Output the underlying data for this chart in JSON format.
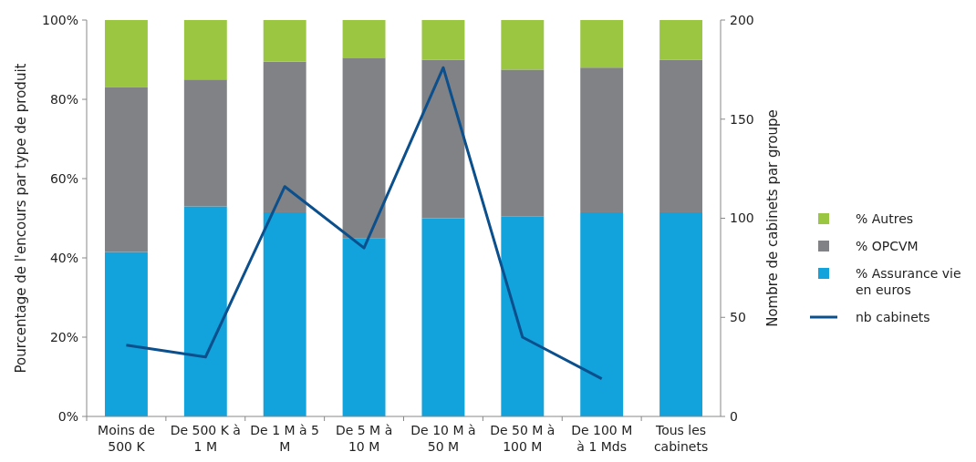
{
  "chart_data": {
    "type": "bar",
    "stacked": true,
    "categories": [
      "Moins de\n500 K",
      "De 500 K à\n1 M",
      "De 1 M à 5\nM",
      "De 5 M à\n10 M",
      "De 10 M à\n50 M",
      "De 50 M à\n100 M",
      "De 100 M\nà 1 Mds",
      "Tous les\ncabinets"
    ],
    "series": [
      {
        "name": "% Assurance vie\nen euros",
        "color": "#12a3dc",
        "values": [
          41.5,
          53,
          51.5,
          45,
          50,
          50.5,
          51.5,
          51.5
        ]
      },
      {
        "name": "% OPCVM",
        "color": "#808285",
        "values": [
          41.5,
          32,
          38,
          45.5,
          40,
          37,
          36.5,
          38.5
        ]
      },
      {
        "name": "% Autres",
        "color": "#9bc642",
        "values": [
          17,
          15,
          10.5,
          9.5,
          10,
          12.5,
          12,
          10
        ]
      },
      {
        "name": "nb cabinets",
        "type": "line",
        "axis": "y2",
        "color": "#0b4f8c",
        "values": [
          36,
          30,
          116,
          85,
          176,
          40,
          19,
          null
        ]
      }
    ],
    "ylim": [
      0,
      100
    ],
    "yticks": [
      {
        "value": 0,
        "label": "0%"
      },
      {
        "value": 20,
        "label": "20%"
      },
      {
        "value": 40,
        "label": "40%"
      },
      {
        "value": 60,
        "label": "60%"
      },
      {
        "value": 80,
        "label": "80%"
      },
      {
        "value": 100,
        "label": "100%"
      }
    ],
    "y2lim": [
      0,
      200
    ],
    "y2ticks": [
      0,
      50,
      100,
      150,
      200
    ],
    "ylabel": "Pourcentage de l'encours par type de produit",
    "y2label": "Nombre de cabinets par groupe",
    "legend": "right",
    "grid": false,
    "marker": "none"
  }
}
